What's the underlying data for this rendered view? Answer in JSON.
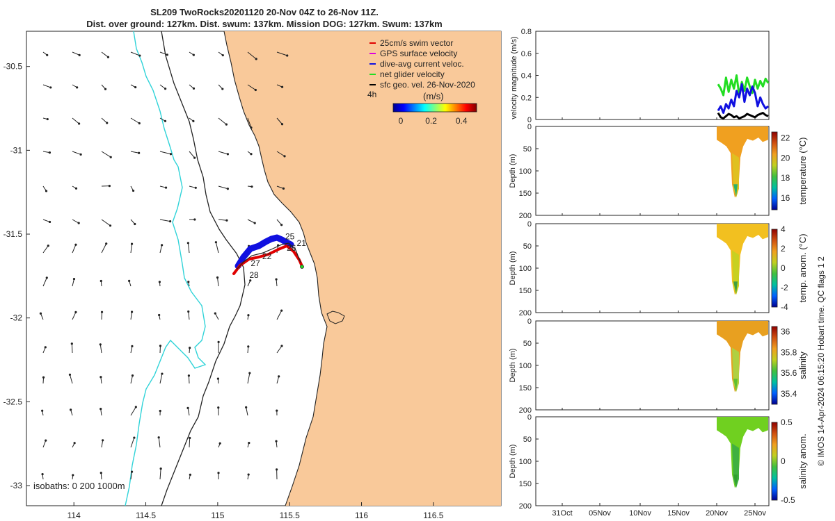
{
  "title": {
    "line1": "SL209 TwoRocks20201120 20-Nov 04Z to 26-Nov 11Z.",
    "line2": "Dist. over ground: 127km. Dist. swum: 137km. Mission DOG: 127km. Swum: 137km"
  },
  "colors": {
    "land": "#f9c99a",
    "contour_200": "#000000",
    "contour_1000": "#000000",
    "contour_0": "#000000",
    "isobath_cyan": "#2fd3d8",
    "track_red": "#e00000",
    "track_blue": "#1010e0",
    "net_green": "#22dd22"
  },
  "chart_data": [
    {
      "type": "map",
      "name": "glider-track-map",
      "x_ticks": [
        "114",
        "114.5",
        "115",
        "115.5",
        "116",
        "116.5"
      ],
      "y_ticks": [
        "-30.5",
        "-31",
        "-31.5",
        "-32",
        "-32.5",
        "-33"
      ],
      "xlim": [
        113.67,
        116.97
      ],
      "ylim": [
        -33.12,
        -30.29
      ],
      "legend": {
        "entries": [
          {
            "label": "25cm/s swim vector",
            "color": "#e00000"
          },
          {
            "label": "GPS surface velocity",
            "color": "#dd00dd"
          },
          {
            "label": "dive-avg current veloc.",
            "color": "#1010e0"
          },
          {
            "label": "net glider velocity",
            "color": "#22dd22"
          },
          {
            "label": "sfc geo. vel. 26-Nov-2020",
            "color": "#000000"
          }
        ],
        "placement": "top-right"
      },
      "colorbar": {
        "label": "(m/s)",
        "ticks": [
          "0",
          "0.2",
          "0.4"
        ],
        "range": [
          -0.05,
          0.5
        ]
      },
      "time_label": "4h",
      "isobath_label": "isobaths: 0   200  1000m",
      "track_labels": [
        {
          "text": "21",
          "lon": 115.55,
          "lat": -31.57
        },
        {
          "text": "22",
          "lon": 115.31,
          "lat": -31.65
        },
        {
          "text": "25",
          "lon": 115.47,
          "lat": -31.53
        },
        {
          "text": "26",
          "lon": 115.48,
          "lat": -31.6
        },
        {
          "text": "27",
          "lon": 115.23,
          "lat": -31.69
        },
        {
          "text": "28",
          "lon": 115.22,
          "lat": -31.76
        }
      ]
    },
    {
      "type": "line",
      "name": "velocity-magnitude",
      "ylabel": "velocity magnitude (m/s)",
      "ylim": [
        0,
        0.8
      ],
      "y_ticks": [
        "0",
        "0.2",
        "0.4",
        "0.6",
        "0.8"
      ],
      "series": [
        {
          "color": "#22dd22",
          "values": [
            0.32,
            0.28,
            0.22,
            0.38,
            0.25,
            0.36,
            0.28,
            0.4,
            0.22,
            0.34,
            0.26,
            0.38,
            0.3,
            0.24,
            0.36,
            0.28,
            0.35,
            0.3,
            0.37,
            0.33
          ]
        },
        {
          "color": "#1010e0",
          "values": [
            0.08,
            0.12,
            0.06,
            0.14,
            0.1,
            0.18,
            0.12,
            0.26,
            0.2,
            0.32,
            0.16,
            0.28,
            0.22,
            0.3,
            0.24,
            0.12,
            0.2,
            0.14,
            0.1,
            0.12
          ]
        },
        {
          "color": "#000000",
          "values": [
            0.06,
            0.02,
            0.01,
            0.03,
            0.05,
            0.04,
            0.02,
            0.03,
            0.01,
            0.02,
            0.03,
            0.05,
            0.04,
            0.03,
            0.02,
            0.04,
            0.05,
            0.06,
            0.04,
            0.03
          ]
        }
      ]
    },
    {
      "type": "heatmap",
      "name": "temperature-section",
      "ylabel": "Depth (m)",
      "ylim": [
        200,
        0
      ],
      "y_ticks": [
        "0",
        "50",
        "100",
        "150",
        "200"
      ],
      "colorbar": {
        "label": "temperature (°C)",
        "ticks": [
          "16",
          "18",
          "20",
          "22"
        ],
        "range": [
          14.8,
          22.6
        ]
      }
    },
    {
      "type": "heatmap",
      "name": "temp-anomaly-section",
      "ylabel": "Depth (m)",
      "ylim": [
        200,
        0
      ],
      "y_ticks": [
        "0",
        "50",
        "100",
        "150",
        "200"
      ],
      "colorbar": {
        "label": "temp. anom. (°C)",
        "ticks": [
          "-4",
          "-2",
          "0",
          "2",
          "4"
        ],
        "range": [
          -4,
          4
        ]
      }
    },
    {
      "type": "heatmap",
      "name": "salinity-section",
      "ylabel": "Depth (m)",
      "ylim": [
        200,
        0
      ],
      "y_ticks": [
        "0",
        "50",
        "100",
        "150",
        "200"
      ],
      "colorbar": {
        "label": "salinity",
        "ticks": [
          "35.4",
          "35.6",
          "35.8",
          "36"
        ],
        "range": [
          35.3,
          36.05
        ]
      }
    },
    {
      "type": "heatmap",
      "name": "salinity-anomaly-section",
      "ylabel": "Depth (m)",
      "ylim": [
        200,
        0
      ],
      "y_ticks": [
        "0",
        "50",
        "100",
        "150",
        "200"
      ],
      "x_ticks": [
        "31Oct",
        "05Nov",
        "10Nov",
        "15Nov",
        "20Nov",
        "25Nov"
      ],
      "colorbar": {
        "label": "salinity anom.",
        "ticks": [
          "-0.5",
          "0",
          "0.5"
        ],
        "range": [
          -0.5,
          0.5
        ]
      }
    }
  ],
  "footer_note": "© IMOS 14-Apr-2024 06:15:20 Hobart time. QC flags 1  2"
}
